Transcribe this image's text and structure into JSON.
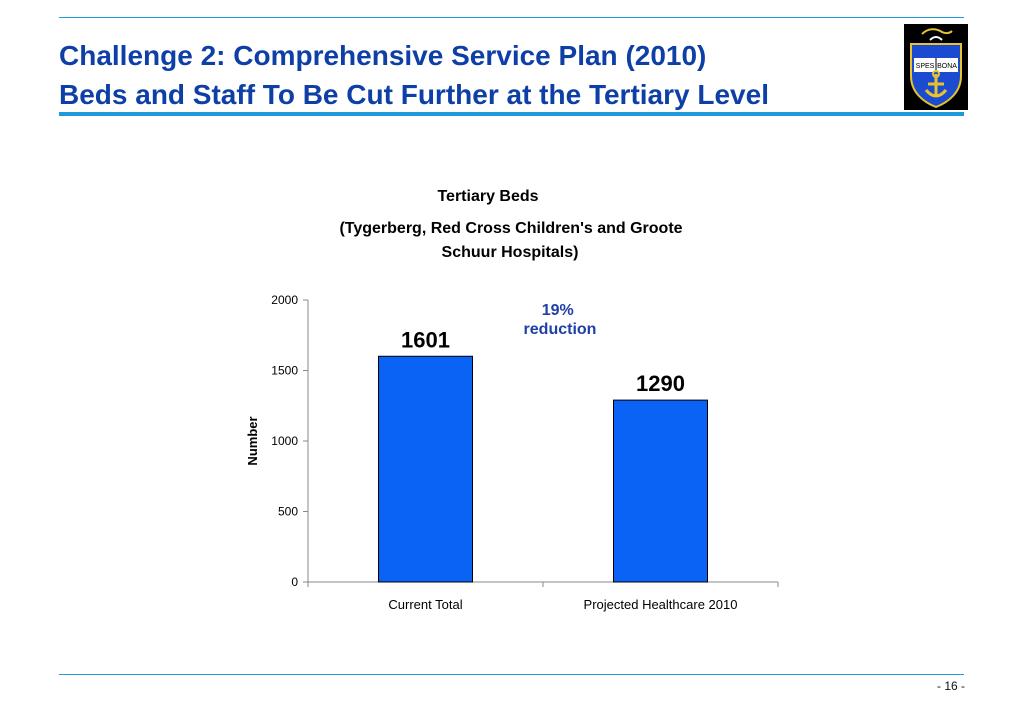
{
  "slide": {
    "title_line1": "Challenge 2: Comprehensive Service Plan (2010)",
    "title_line2": "Beds and Staff To Be Cut Further at the Tertiary Level",
    "page_number": "- 16 -",
    "logo_text": "SPES BONA"
  },
  "chart_data": {
    "type": "bar",
    "title": "Tertiary Beds",
    "subtitle_line1": "(Tygerberg, Red Cross Children's and Groote",
    "subtitle_line2": "Schuur Hospitals)",
    "categories": [
      "Current Total",
      "Projected Healthcare 2010"
    ],
    "values": [
      1601,
      1290
    ],
    "data_labels": [
      "1601",
      "1290"
    ],
    "xlabel": "",
    "ylabel": "Number",
    "ylim": [
      0,
      2000
    ],
    "yticks": [
      0,
      500,
      1000,
      1500,
      2000
    ],
    "grid": false,
    "bar_color": "#0b63f6",
    "annotation": [
      "19%",
      "reduction"
    ],
    "annotation_color": "#1f3fa8"
  }
}
